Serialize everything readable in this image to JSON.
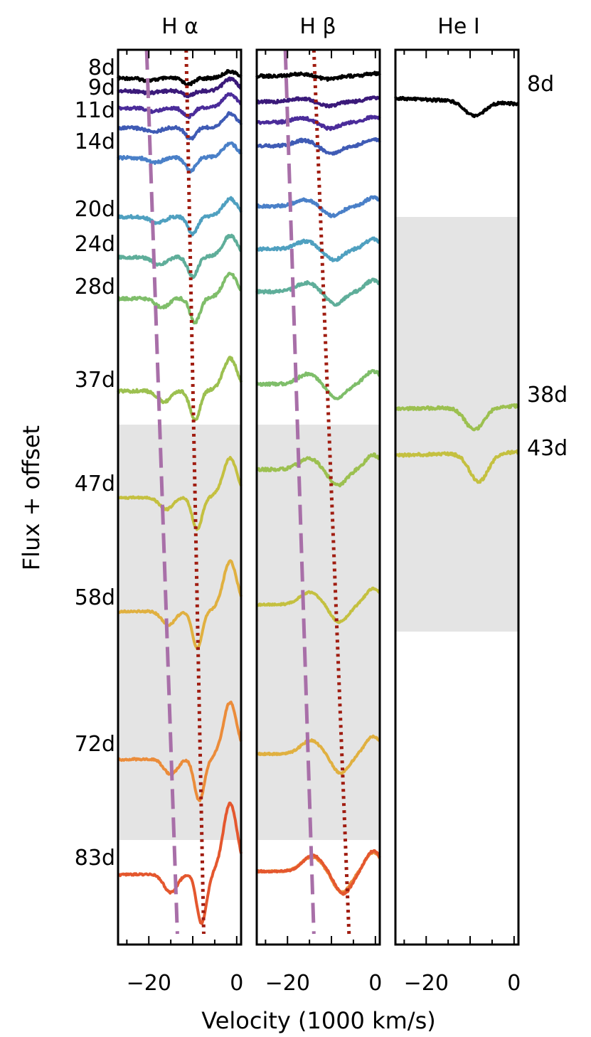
{
  "chart_data": {
    "type": "line",
    "ylabel": "Flux + offset",
    "xlabel": "Velocity (1000 km/s)",
    "xlim": [
      -27,
      1
    ],
    "x_ticks": [
      "−20",
      "0"
    ],
    "x_tick_values": [
      -20,
      0
    ],
    "grid": false,
    "shaded_band": "light gray background band marking a subset of epochs",
    "panels": [
      {
        "title": "H α",
        "epoch_labels_side": "left",
        "shade_epoch_range": [
          "43d",
          "83d"
        ],
        "spectra": [
          {
            "epoch": "8d",
            "color": "#000000",
            "minima_vel": [
              -20,
              -11
            ],
            "depth": 0.25,
            "emission": 0.2
          },
          {
            "epoch": "9d",
            "color": "#3b1a7a",
            "minima_vel": [
              -20,
              -11
            ],
            "depth": 0.2,
            "emission": 0.35
          },
          {
            "epoch": "11d",
            "color": "#4b2c9a",
            "minima_vel": [
              -19,
              -11
            ],
            "depth": 0.35,
            "emission": 0.4
          },
          {
            "epoch": "14d",
            "color": "#3f5bb5",
            "minima_vel": [
              -19,
              -10.5
            ],
            "depth": 0.45,
            "emission": 0.4
          },
          {
            "epoch": "20d",
            "color": "#4a80c8",
            "minima_vel": [
              -18.5,
              -10.5
            ],
            "depth": 0.55,
            "emission": 0.4
          },
          {
            "epoch": "24d",
            "color": "#4fa0c0",
            "minima_vel": [
              -18,
              -10
            ],
            "depth": 0.7,
            "emission": 0.5
          },
          {
            "epoch": "28d",
            "color": "#5fae9a",
            "minima_vel": [
              -17.5,
              -10
            ],
            "depth": 0.8,
            "emission": 0.6
          },
          {
            "epoch": "37d",
            "color": "#7fbe6a",
            "minima_vel": [
              -17,
              -9.5
            ],
            "depth": 1.0,
            "emission": 0.7
          },
          {
            "epoch": "47d",
            "color": "#9cc050",
            "minima_vel": [
              -16.5,
              -9.5
            ],
            "depth": 1.2,
            "emission": 0.9
          },
          {
            "epoch": "58d",
            "color": "#c4c040",
            "minima_vel": [
              -16,
              -9
            ],
            "depth": 1.3,
            "emission": 1.1
          },
          {
            "epoch": "72d",
            "color": "#e0b040",
            "minima_vel": [
              -15.5,
              -9
            ],
            "depth": 1.5,
            "emission": 1.4
          },
          {
            "epoch": "83d",
            "color": "#eb8c3a",
            "minima_vel": [
              -15,
              -8.5
            ],
            "depth": 1.7,
            "emission": 1.6
          },
          {
            "epoch": "",
            "color": "#e4572e",
            "minima_vel": [
              -15,
              -8
            ],
            "depth": 2.0,
            "emission": 2.0
          }
        ],
        "dashed_track": {
          "color": "#a86fa8",
          "vel_start": -20.5,
          "vel_end": -13.5
        },
        "dotted_track": {
          "color": "#a01c10",
          "vel_start": -11.5,
          "vel_end": -7.5
        }
      },
      {
        "title": "H β",
        "shade_epoch_range": [
          "43d",
          "83d"
        ],
        "spectra": [
          {
            "epoch": "8d",
            "color": "#000000"
          },
          {
            "epoch": "9d",
            "color": "#3b1a7a"
          },
          {
            "epoch": "11d",
            "color": "#4b2c9a"
          },
          {
            "epoch": "14d",
            "color": "#3f5bb5"
          },
          {
            "epoch": "20d",
            "color": "#4a80c8"
          },
          {
            "epoch": "24d",
            "color": "#4fa0c0"
          },
          {
            "epoch": "28d",
            "color": "#5fae9a"
          },
          {
            "epoch": "37d",
            "color": "#7fbe6a"
          },
          {
            "epoch": "47d",
            "color": "#9cc050"
          },
          {
            "epoch": "58d",
            "color": "#c4c040"
          },
          {
            "epoch": "72d",
            "color": "#e0b040"
          },
          {
            "epoch": "83d",
            "color": "#eb8c3a"
          },
          {
            "epoch": "",
            "color": "#e4572e"
          }
        ],
        "dashed_track": {
          "color": "#a86fa8",
          "vel_start": -20.5,
          "vel_end": -14
        },
        "dotted_track": {
          "color": "#a01c10",
          "vel_start": -14,
          "vel_end": -6
        }
      },
      {
        "title": "He I",
        "epoch_labels_side": "right",
        "shade_epoch_range": [
          "38d",
          "43d"
        ],
        "spectra": [
          {
            "epoch": "8d",
            "color": "#000000",
            "min_vel": -9,
            "depth": 0.5
          },
          {
            "epoch": "38d",
            "color": "#9cc050",
            "min_vel": -9,
            "depth": 0.8
          },
          {
            "epoch": "43d",
            "color": "#c4c040",
            "min_vel": -8,
            "depth": 1.0
          }
        ]
      }
    ]
  }
}
